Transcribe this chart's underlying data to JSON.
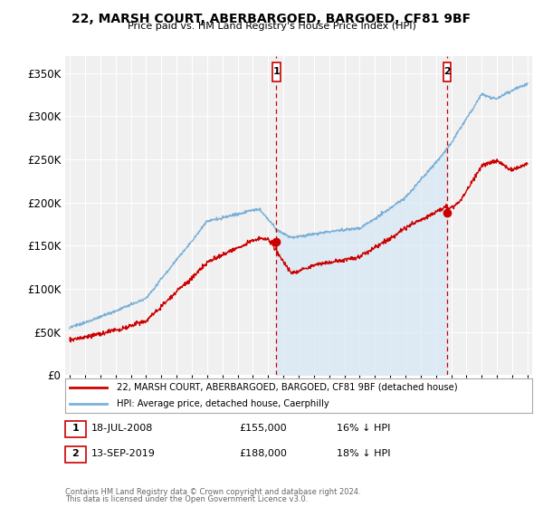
{
  "title": "22, MARSH COURT, ABERBARGOED, BARGOED, CF81 9BF",
  "subtitle": "Price paid vs. HM Land Registry's House Price Index (HPI)",
  "legend_line1": "22, MARSH COURT, ABERBARGOED, BARGOED, CF81 9BF (detached house)",
  "legend_line2": "HPI: Average price, detached house, Caerphilly",
  "sale1_date": "18-JUL-2008",
  "sale1_price": 155000,
  "sale1_hpi_pct": "16% ↓ HPI",
  "sale2_date": "13-SEP-2019",
  "sale2_price": 188000,
  "sale2_hpi_pct": "18% ↓ HPI",
  "footer1": "Contains HM Land Registry data © Crown copyright and database right 2024.",
  "footer2": "This data is licensed under the Open Government Licence v3.0.",
  "ylim": [
    0,
    370000
  ],
  "yticks": [
    0,
    50000,
    100000,
    150000,
    200000,
    250000,
    300000,
    350000
  ],
  "bg_color": "#ffffff",
  "plot_bg_color": "#f0f0f0",
  "grid_color": "#ffffff",
  "hpi_line_color": "#7ab0d8",
  "hpi_fill_color": "#d6e8f5",
  "price_line_color": "#cc0000",
  "marker_line_color": "#cc0000",
  "sale1_x": 2008.54,
  "sale2_x": 2019.71,
  "xstart": 1995,
  "xend": 2025
}
